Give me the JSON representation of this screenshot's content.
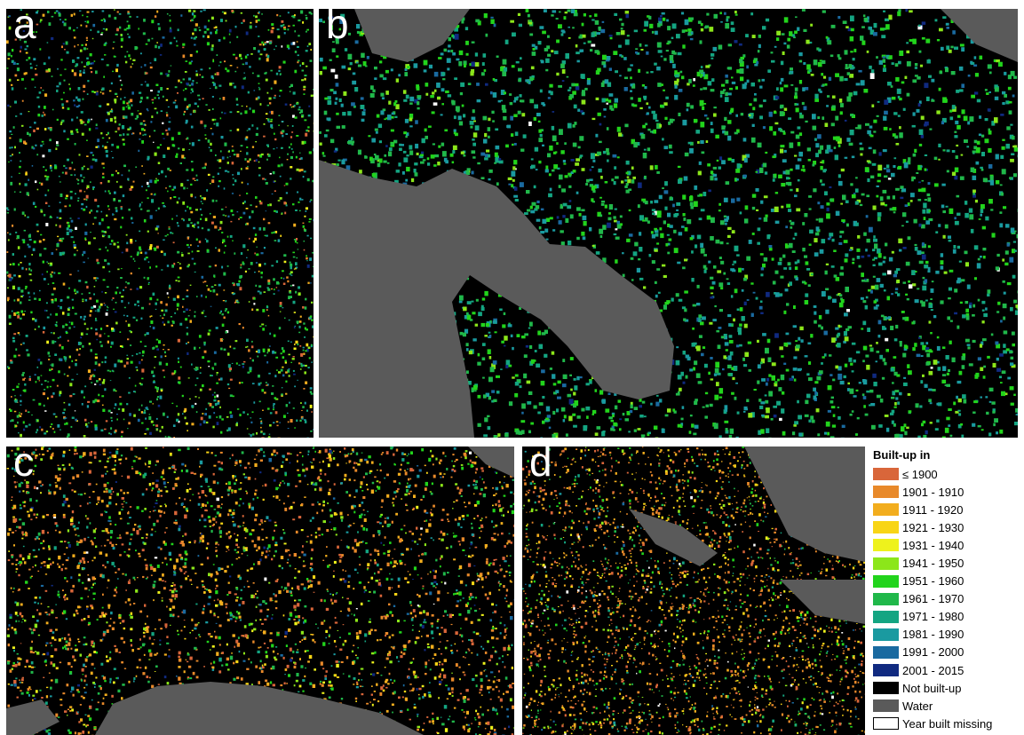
{
  "panels": [
    {
      "id": "a",
      "label": "a"
    },
    {
      "id": "b",
      "label": "b"
    },
    {
      "id": "c",
      "label": "c"
    },
    {
      "id": "d",
      "label": "d"
    }
  ],
  "legend": {
    "title": "Built-up in",
    "items": [
      {
        "label": "≤ 1900",
        "color": "#d9663a"
      },
      {
        "label": "1901 - 1910",
        "color": "#e8892a"
      },
      {
        "label": "1911 - 1920",
        "color": "#f2ad1e"
      },
      {
        "label": "1921 - 1930",
        "color": "#f8d516"
      },
      {
        "label": "1931 - 1940",
        "color": "#eef21c"
      },
      {
        "label": "1941 - 1950",
        "color": "#8ce61a"
      },
      {
        "label": "1951 - 1960",
        "color": "#22d41c"
      },
      {
        "label": "1961 - 1970",
        "color": "#20b84a"
      },
      {
        "label": "1971 - 1980",
        "color": "#14a582"
      },
      {
        "label": "1981 - 1990",
        "color": "#1a9aa0"
      },
      {
        "label": "1991 - 2000",
        "color": "#1a6aa0"
      },
      {
        "label": "2001 - 2015",
        "color": "#102a80"
      },
      {
        "label": "Not built-up",
        "color": "#000000"
      },
      {
        "label": "Water",
        "color": "#5a5a5a"
      },
      {
        "label": "Year built missing",
        "color": "#ffffff",
        "outlined": true
      }
    ]
  }
}
